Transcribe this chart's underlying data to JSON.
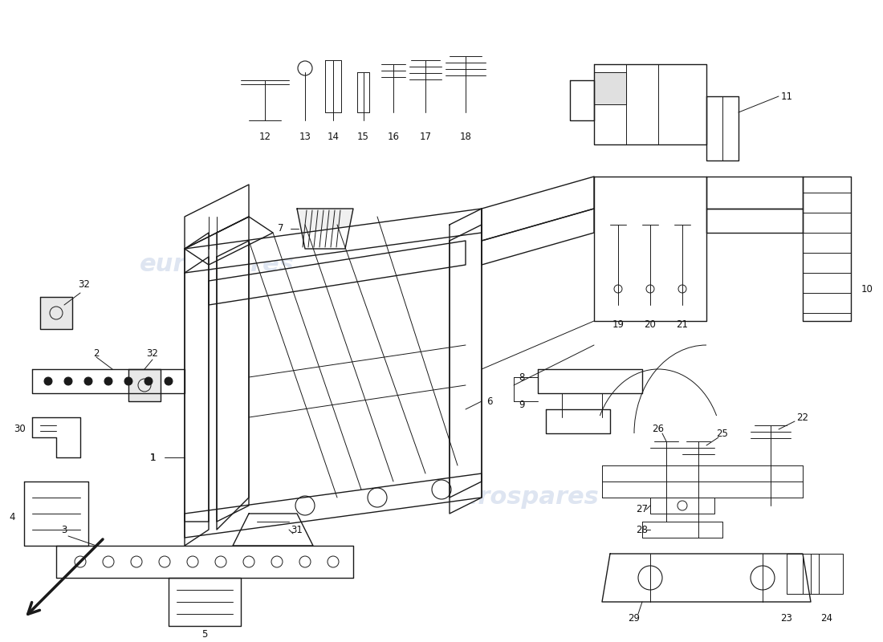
{
  "background_color": "#ffffff",
  "watermark_text": "eurospares",
  "watermark_color": "#c8d4e8",
  "line_color": "#1a1a1a",
  "label_color": "#111111",
  "label_fontsize": 8.5,
  "fig_width": 11.0,
  "fig_height": 8.0,
  "dpi": 100,
  "xlim": [
    0,
    110
  ],
  "ylim": [
    80,
    0
  ]
}
